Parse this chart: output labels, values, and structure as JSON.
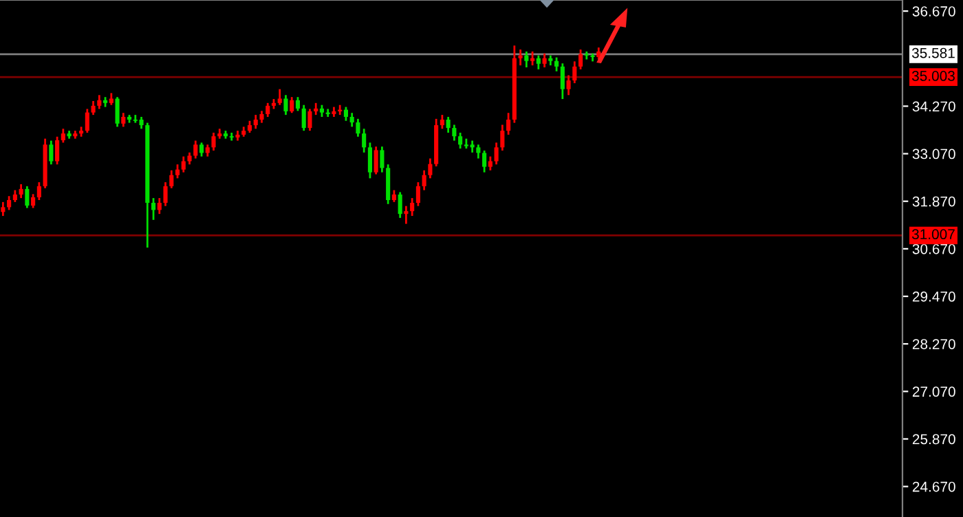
{
  "chart_data": {
    "type": "candlestick",
    "categories": [
      null,
      null,
      null,
      null,
      null,
      null,
      null,
      null,
      null,
      null,
      null,
      null,
      null,
      null,
      null,
      null,
      null,
      null,
      null,
      null,
      null,
      null,
      null,
      null,
      null,
      null,
      null,
      null,
      null,
      null,
      null,
      null,
      null,
      null,
      null,
      null,
      null,
      null,
      null,
      null,
      null,
      null,
      null,
      null,
      null,
      null,
      null,
      null,
      null,
      null,
      null,
      null,
      null,
      null,
      null,
      null,
      null,
      null,
      null,
      null,
      null,
      null,
      null,
      null,
      null,
      null,
      null,
      null,
      null,
      null,
      null,
      null,
      null,
      null,
      null,
      null,
      null,
      null,
      null,
      null,
      null,
      null,
      null,
      null,
      null,
      null,
      null,
      null,
      null,
      null,
      null,
      null,
      null,
      null,
      null,
      null,
      null,
      null,
      null,
      null,
      null,
      null,
      null,
      null,
      null,
      null,
      null,
      null,
      null,
      null,
      null,
      null,
      null,
      null,
      null,
      null,
      null,
      null,
      null,
      null,
      null,
      null,
      null,
      null,
      null,
      null,
      null,
      null,
      null,
      null,
      null,
      null,
      null,
      null,
      null,
      null,
      null,
      null,
      null,
      null,
      null,
      null,
      null,
      null,
      null,
      null,
      null,
      null,
      null,
      null
    ],
    "ohlc": [
      [
        31.6,
        31.85,
        31.5,
        31.72
      ],
      [
        31.72,
        32.0,
        31.65,
        31.9
      ],
      [
        31.9,
        32.15,
        31.85,
        32.04
      ],
      [
        32.04,
        32.3,
        31.95,
        32.18
      ],
      [
        32.18,
        32.25,
        31.7,
        31.76
      ],
      [
        31.76,
        32.05,
        31.7,
        31.97
      ],
      [
        31.97,
        32.35,
        31.9,
        32.25
      ],
      [
        32.25,
        33.45,
        32.2,
        33.3
      ],
      [
        33.3,
        33.4,
        32.8,
        32.88
      ],
      [
        32.88,
        33.5,
        32.8,
        33.41
      ],
      [
        33.41,
        33.7,
        33.35,
        33.58
      ],
      [
        33.58,
        33.65,
        33.45,
        33.51
      ],
      [
        33.51,
        33.65,
        33.45,
        33.58
      ],
      [
        33.58,
        33.75,
        33.5,
        33.65
      ],
      [
        33.65,
        34.2,
        33.6,
        34.11
      ],
      [
        34.11,
        34.4,
        34.05,
        34.28
      ],
      [
        34.28,
        34.55,
        34.2,
        34.42
      ],
      [
        34.42,
        34.5,
        34.25,
        34.35
      ],
      [
        34.35,
        34.6,
        34.3,
        34.46
      ],
      [
        34.46,
        34.5,
        33.75,
        33.83
      ],
      [
        33.83,
        34.1,
        33.75,
        34.0
      ],
      [
        34.0,
        34.05,
        33.85,
        33.93
      ],
      [
        33.93,
        34.05,
        33.85,
        33.9
      ],
      [
        33.93,
        34.0,
        33.7,
        33.79
      ],
      [
        33.79,
        33.85,
        30.7,
        31.83
      ],
      [
        31.83,
        31.95,
        31.4,
        31.65
      ],
      [
        31.65,
        31.95,
        31.55,
        31.83
      ],
      [
        31.83,
        32.35,
        31.75,
        32.25
      ],
      [
        32.25,
        32.65,
        32.2,
        32.53
      ],
      [
        32.53,
        32.8,
        32.45,
        32.67
      ],
      [
        32.67,
        33.0,
        32.6,
        32.88
      ],
      [
        32.88,
        33.1,
        32.8,
        33.02
      ],
      [
        33.02,
        33.4,
        32.95,
        33.3
      ],
      [
        33.3,
        33.35,
        33.0,
        33.09
      ],
      [
        33.09,
        33.3,
        33.0,
        33.23
      ],
      [
        33.23,
        33.6,
        33.15,
        33.51
      ],
      [
        33.51,
        33.7,
        33.45,
        33.58
      ],
      [
        33.58,
        33.65,
        33.45,
        33.51
      ],
      [
        33.51,
        33.6,
        33.4,
        33.48
      ],
      [
        33.48,
        33.65,
        33.4,
        33.55
      ],
      [
        33.55,
        33.75,
        33.5,
        33.65
      ],
      [
        33.65,
        33.9,
        33.6,
        33.79
      ],
      [
        33.79,
        34.05,
        33.7,
        33.93
      ],
      [
        33.93,
        34.15,
        33.85,
        34.07
      ],
      [
        34.07,
        34.35,
        34.0,
        34.28
      ],
      [
        34.28,
        34.45,
        34.2,
        34.35
      ],
      [
        34.35,
        34.7,
        34.3,
        34.46
      ],
      [
        34.46,
        34.55,
        34.05,
        34.14
      ],
      [
        34.14,
        34.5,
        34.1,
        34.42
      ],
      [
        34.42,
        34.5,
        34.15,
        34.21
      ],
      [
        34.21,
        34.3,
        33.65,
        33.72
      ],
      [
        33.72,
        34.2,
        33.65,
        34.14
      ],
      [
        34.14,
        34.35,
        34.05,
        34.21
      ],
      [
        34.21,
        34.3,
        34.0,
        34.11
      ],
      [
        34.11,
        34.2,
        34.0,
        34.07
      ],
      [
        34.07,
        34.25,
        34.0,
        34.14
      ],
      [
        34.14,
        34.3,
        34.05,
        34.18
      ],
      [
        34.18,
        34.25,
        33.9,
        34.0
      ],
      [
        34.0,
        34.1,
        33.75,
        33.86
      ],
      [
        33.86,
        33.95,
        33.5,
        33.58
      ],
      [
        33.58,
        33.7,
        33.1,
        33.23
      ],
      [
        33.23,
        33.35,
        32.45,
        32.6
      ],
      [
        32.6,
        33.25,
        32.55,
        33.16
      ],
      [
        33.16,
        33.25,
        32.6,
        32.71
      ],
      [
        32.71,
        32.8,
        31.8,
        31.9
      ],
      [
        31.9,
        32.15,
        31.85,
        32.04
      ],
      [
        32.04,
        32.1,
        31.45,
        31.55
      ],
      [
        31.55,
        31.75,
        31.3,
        31.62
      ],
      [
        31.62,
        31.95,
        31.5,
        31.83
      ],
      [
        31.83,
        32.35,
        31.75,
        32.25
      ],
      [
        32.25,
        32.65,
        32.15,
        32.53
      ],
      [
        32.53,
        32.95,
        32.45,
        32.81
      ],
      [
        32.81,
        33.95,
        32.75,
        33.79
      ],
      [
        33.79,
        34.05,
        33.7,
        33.93
      ],
      [
        33.93,
        34.0,
        33.6,
        33.72
      ],
      [
        33.72,
        33.8,
        33.4,
        33.51
      ],
      [
        33.51,
        33.6,
        33.2,
        33.3
      ],
      [
        33.3,
        33.45,
        33.2,
        33.26
      ],
      [
        33.3,
        33.4,
        33.1,
        33.23
      ],
      [
        33.23,
        33.3,
        32.95,
        33.09
      ],
      [
        33.09,
        33.15,
        32.6,
        32.74
      ],
      [
        32.74,
        33.0,
        32.65,
        32.88
      ],
      [
        32.88,
        33.35,
        32.8,
        33.23
      ],
      [
        33.23,
        33.8,
        33.15,
        33.65
      ],
      [
        33.65,
        34.1,
        33.55,
        33.93
      ],
      [
        33.93,
        35.8,
        33.85,
        35.48
      ],
      [
        35.48,
        35.7,
        35.3,
        35.55
      ],
      [
        35.55,
        35.65,
        35.25,
        35.41
      ],
      [
        35.41,
        35.65,
        35.3,
        35.48
      ],
      [
        35.48,
        35.55,
        35.2,
        35.34
      ],
      [
        35.34,
        35.6,
        35.25,
        35.48
      ],
      [
        35.48,
        35.55,
        35.3,
        35.41
      ],
      [
        35.41,
        35.5,
        35.15,
        35.27
      ],
      [
        35.27,
        35.35,
        34.45,
        34.7
      ],
      [
        34.7,
        35.05,
        34.55,
        34.92
      ],
      [
        34.92,
        35.4,
        34.85,
        35.27
      ],
      [
        35.27,
        35.7,
        35.2,
        35.58
      ],
      [
        35.58,
        35.65,
        35.45,
        35.55
      ],
      [
        35.55,
        35.6,
        35.4,
        35.51
      ],
      [
        35.51,
        35.75,
        35.45,
        35.65
      ],
      null,
      null,
      null,
      null,
      null,
      null,
      null,
      null,
      null,
      null,
      null,
      null,
      null,
      null,
      null,
      null,
      null,
      null,
      null,
      null,
      null,
      null,
      null,
      null,
      null,
      null,
      null,
      null,
      null,
      null,
      null,
      null,
      null,
      null,
      null,
      null,
      null,
      null,
      null,
      null,
      null,
      null,
      null,
      null,
      null,
      null,
      null,
      null,
      null,
      null
    ],
    "colors": [
      "#ff0000",
      "#ff0000",
      "#ff0000",
      "#ff0000",
      "#00e000",
      "#ff0000",
      "#ff0000",
      "#ff0000",
      "#00e000",
      "#ff0000",
      "#ff0000",
      "#00e000",
      "#ff0000",
      "#ff0000",
      "#ff0000",
      "#ff0000",
      "#ff0000",
      "#00e000",
      "#ff0000",
      "#00e000",
      "#ff0000",
      "#00e000",
      "#00e000",
      "#00e000",
      "#00e000",
      "#00e000",
      "#ff0000",
      "#ff0000",
      "#ff0000",
      "#ff0000",
      "#ff0000",
      "#ff0000",
      "#ff0000",
      "#00e000",
      "#ff0000",
      "#ff0000",
      "#ff0000",
      "#00e000",
      "#00e000",
      "#ff0000",
      "#ff0000",
      "#ff0000",
      "#ff0000",
      "#ff0000",
      "#ff0000",
      "#ff0000",
      "#ff0000",
      "#00e000",
      "#ff0000",
      "#00e000",
      "#00e000",
      "#ff0000",
      "#ff0000",
      "#00e000",
      "#00e000",
      "#ff0000",
      "#ff0000",
      "#00e000",
      "#00e000",
      "#00e000",
      "#00e000",
      "#00e000",
      "#ff0000",
      "#00e000",
      "#00e000",
      "#ff0000",
      "#00e000",
      "#ff0000",
      "#ff0000",
      "#ff0000",
      "#ff0000",
      "#ff0000",
      "#ff0000",
      "#ff0000",
      "#00e000",
      "#00e000",
      "#00e000",
      "#00e000",
      "#00e000",
      "#00e000",
      "#00e000",
      "#ff0000",
      "#ff0000",
      "#ff0000",
      "#ff0000",
      "#ff0000",
      "#ff0000",
      "#00e000",
      "#ff0000",
      "#00e000",
      "#ff0000",
      "#00e000",
      "#00e000",
      "#00e000",
      "#ff0000",
      "#ff0000",
      "#ff0000",
      "#00e000",
      "#00e000",
      "#ff0000",
      null,
      null,
      null,
      null,
      null,
      null,
      null,
      null,
      null,
      null,
      null,
      null,
      null,
      null,
      null,
      null,
      null,
      null,
      null,
      null,
      null,
      null,
      null,
      null,
      null,
      null,
      null,
      null,
      null,
      null,
      null,
      null,
      null,
      null,
      null,
      null,
      null,
      null,
      null,
      null,
      null,
      null,
      null,
      null,
      null,
      null,
      null,
      null,
      null,
      null
    ],
    "ylim": [
      23.9,
      36.95
    ],
    "yticks": [
      {
        "value": 36.67,
        "label": "36.670"
      },
      {
        "value": 34.27,
        "label": "34.270"
      },
      {
        "value": 33.07,
        "label": "33.070"
      },
      {
        "value": 31.87,
        "label": "31.870"
      },
      {
        "value": 30.67,
        "label": "30.670"
      },
      {
        "value": 29.47,
        "label": "29.470"
      },
      {
        "value": 28.27,
        "label": "28.270"
      },
      {
        "value": 27.07,
        "label": "27.070"
      },
      {
        "value": 25.87,
        "label": "25.870"
      },
      {
        "value": 24.67,
        "label": "24.670"
      }
    ],
    "ref_lines": [
      {
        "axis": "y",
        "value": 35.581,
        "label": "35.581",
        "color": "#ffffff"
      },
      {
        "axis": "y",
        "value": 35.003,
        "label": "35.003",
        "color": "#ff0000"
      },
      {
        "axis": "y",
        "value": 31.007,
        "label": "31.007",
        "color": "#ff0000"
      }
    ],
    "grid": false
  }
}
